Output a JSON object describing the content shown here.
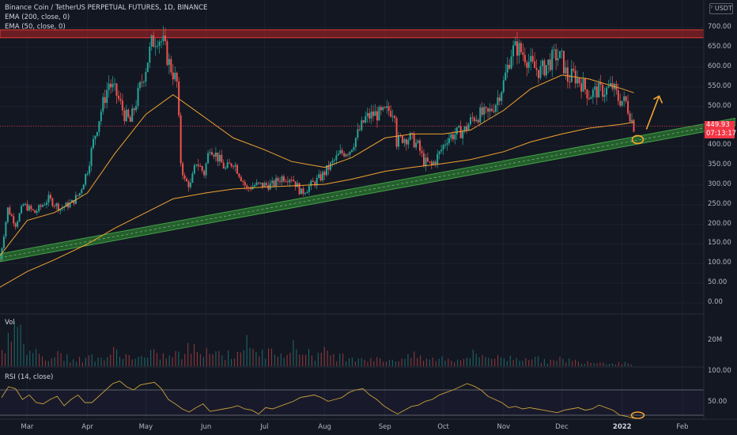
{
  "header": {
    "title": "Binance Coin / TetherUS PERPETUAL FUTURES, 1D, BINANCE",
    "indicators": [
      "EMA (200, close, 0)",
      "EMA (50, close, 0)"
    ]
  },
  "currency": "USDT",
  "last_price": {
    "value": "449.93",
    "countdown": "07:13:17"
  },
  "volume_panel": {
    "label": "Vol",
    "scale_label": "20M"
  },
  "rsi_panel": {
    "label": "RSI (14, close)",
    "scale_labels": [
      "100.00",
      "50.00"
    ]
  },
  "colors": {
    "background": "#131722",
    "up": "#26a69a",
    "down": "#ef5350",
    "ema": "#f0a330",
    "rsi": "#c8a03a",
    "resistance_zone": "#b22222",
    "support_zone": "#2e7d32",
    "annotation": "#f7a530"
  },
  "chart_data": [
    {
      "type": "candlestick",
      "title": "Binance Coin / TetherUS PERPETUAL FUTURES, 1D, BINANCE",
      "y_ticks": [
        "700.00",
        "650.00",
        "600.00",
        "550.00",
        "500.00",
        "450.00",
        "400.00",
        "350.00",
        "300.00",
        "250.00",
        "200.00",
        "150.00",
        "100.00",
        "50.00",
        "0.00"
      ],
      "ylim": [
        0,
        720
      ],
      "x_ticks": [
        "Mar",
        "Apr",
        "May",
        "Jun",
        "Jul",
        "Aug",
        "Sep",
        "Oct",
        "Nov",
        "Dec",
        "2022",
        "Feb"
      ],
      "date_range": [
        "2021-02-15",
        "2022-01-07"
      ],
      "price_path": [
        [
          "2021-02-15",
          110
        ],
        [
          "2021-02-19",
          240
        ],
        [
          "2021-02-23",
          200
        ],
        [
          "2021-02-27",
          250
        ],
        [
          "2021-03-05",
          230
        ],
        [
          "2021-03-12",
          265
        ],
        [
          "2021-03-18",
          240
        ],
        [
          "2021-03-24",
          255
        ],
        [
          "2021-03-28",
          280
        ],
        [
          "2021-04-01",
          340
        ],
        [
          "2021-04-04",
          410
        ],
        [
          "2021-04-08",
          490
        ],
        [
          "2021-04-12",
          560
        ],
        [
          "2021-04-16",
          530
        ],
        [
          "2021-04-20",
          480
        ],
        [
          "2021-04-23",
          460
        ],
        [
          "2021-04-27",
          530
        ],
        [
          "2021-05-01",
          600
        ],
        [
          "2021-05-04",
          660
        ],
        [
          "2021-05-07",
          680
        ],
        [
          "2021-05-10",
          660
        ],
        [
          "2021-05-13",
          610
        ],
        [
          "2021-05-17",
          560
        ],
        [
          "2021-05-19",
          360
        ],
        [
          "2021-05-21",
          310
        ],
        [
          "2021-05-24",
          300
        ],
        [
          "2021-05-27",
          360
        ],
        [
          "2021-05-31",
          330
        ],
        [
          "2021-06-03",
          400
        ],
        [
          "2021-06-07",
          370
        ],
        [
          "2021-06-11",
          340
        ],
        [
          "2021-06-15",
          360
        ],
        [
          "2021-06-19",
          320
        ],
        [
          "2021-06-22",
          290
        ],
        [
          "2021-06-26",
          300
        ],
        [
          "2021-06-30",
          300
        ],
        [
          "2021-07-05",
          300
        ],
        [
          "2021-07-10",
          320
        ],
        [
          "2021-07-15",
          320
        ],
        [
          "2021-07-20",
          280
        ],
        [
          "2021-07-25",
          300
        ],
        [
          "2021-07-30",
          320
        ],
        [
          "2021-08-04",
          350
        ],
        [
          "2021-08-09",
          380
        ],
        [
          "2021-08-14",
          390
        ],
        [
          "2021-08-18",
          430
        ],
        [
          "2021-08-22",
          470
        ],
        [
          "2021-08-26",
          480
        ],
        [
          "2021-08-30",
          480
        ],
        [
          "2021-09-03",
          490
        ],
        [
          "2021-09-06",
          490
        ],
        [
          "2021-09-07",
          410
        ],
        [
          "2021-09-10",
          420
        ],
        [
          "2021-09-14",
          420
        ],
        [
          "2021-09-18",
          400
        ],
        [
          "2021-09-21",
          360
        ],
        [
          "2021-09-25",
          350
        ],
        [
          "2021-09-29",
          380
        ],
        [
          "2021-10-03",
          420
        ],
        [
          "2021-10-07",
          430
        ],
        [
          "2021-10-12",
          440
        ],
        [
          "2021-10-16",
          470
        ],
        [
          "2021-10-20",
          480
        ],
        [
          "2021-10-24",
          480
        ],
        [
          "2021-10-28",
          510
        ],
        [
          "2021-11-01",
          560
        ],
        [
          "2021-11-05",
          640
        ],
        [
          "2021-11-08",
          650
        ],
        [
          "2021-11-12",
          630
        ],
        [
          "2021-11-16",
          600
        ],
        [
          "2021-11-20",
          590
        ],
        [
          "2021-11-24",
          610
        ],
        [
          "2021-11-28",
          630
        ],
        [
          "2021-12-01",
          620
        ],
        [
          "2021-12-04",
          570
        ],
        [
          "2021-12-07",
          580
        ],
        [
          "2021-12-11",
          560
        ],
        [
          "2021-12-15",
          530
        ],
        [
          "2021-12-19",
          540
        ],
        [
          "2021-12-23",
          540
        ],
        [
          "2021-12-27",
          550
        ],
        [
          "2021-12-30",
          520
        ],
        [
          "2022-01-03",
          510
        ],
        [
          "2022-01-05",
          480
        ],
        [
          "2022-01-07",
          450
        ]
      ],
      "ema_50": [
        [
          "2021-02-15",
          120
        ],
        [
          "2021-03-01",
          210
        ],
        [
          "2021-03-15",
          230
        ],
        [
          "2021-04-01",
          280
        ],
        [
          "2021-04-15",
          380
        ],
        [
          "2021-05-01",
          480
        ],
        [
          "2021-05-15",
          530
        ],
        [
          "2021-06-01",
          470
        ],
        [
          "2021-06-15",
          420
        ],
        [
          "2021-07-01",
          390
        ],
        [
          "2021-07-15",
          360
        ],
        [
          "2021-08-01",
          345
        ],
        [
          "2021-08-15",
          370
        ],
        [
          "2021-09-01",
          420
        ],
        [
          "2021-09-15",
          430
        ],
        [
          "2021-10-01",
          430
        ],
        [
          "2021-10-15",
          440
        ],
        [
          "2021-11-01",
          490
        ],
        [
          "2021-11-15",
          545
        ],
        [
          "2021-12-01",
          580
        ],
        [
          "2021-12-15",
          570
        ],
        [
          "2022-01-01",
          545
        ],
        [
          "2022-01-07",
          535
        ]
      ],
      "ema_200": [
        [
          "2021-02-15",
          40
        ],
        [
          "2021-03-01",
          80
        ],
        [
          "2021-03-15",
          110
        ],
        [
          "2021-04-01",
          150
        ],
        [
          "2021-04-15",
          190
        ],
        [
          "2021-05-01",
          230
        ],
        [
          "2021-05-15",
          265
        ],
        [
          "2021-06-01",
          280
        ],
        [
          "2021-06-15",
          290
        ],
        [
          "2021-07-01",
          295
        ],
        [
          "2021-07-15",
          298
        ],
        [
          "2021-08-01",
          302
        ],
        [
          "2021-08-15",
          315
        ],
        [
          "2021-09-01",
          335
        ],
        [
          "2021-09-15",
          345
        ],
        [
          "2021-10-01",
          355
        ],
        [
          "2021-10-15",
          365
        ],
        [
          "2021-11-01",
          385
        ],
        [
          "2021-11-15",
          410
        ],
        [
          "2021-12-01",
          430
        ],
        [
          "2021-12-15",
          445
        ],
        [
          "2022-01-01",
          455
        ],
        [
          "2022-01-07",
          460
        ]
      ],
      "resistance_zone": {
        "from": 675,
        "to": 695
      },
      "support_trendline": [
        [
          "2021-02-15",
          115
        ],
        [
          "2022-02-28",
          460
        ]
      ],
      "current_price": 449.93
    },
    {
      "type": "bar",
      "title": "Vol",
      "y_ticks": [
        "20M"
      ],
      "values_relative": [
        0.75,
        0.95,
        0.5,
        0.3,
        0.4,
        0.25,
        0.2,
        0.3,
        0.25,
        0.45,
        0.3,
        0.25,
        0.35,
        0.3,
        0.35,
        0.5,
        0.55,
        0.4,
        0.35,
        0.65,
        0.45,
        0.4,
        0.55,
        0.55,
        0.45,
        0.35,
        0.4,
        0.3,
        0.3,
        0.25,
        0.2,
        0.2,
        0.25,
        0.3,
        0.2,
        0.25,
        0.2,
        0.3,
        0.35,
        0.3,
        0.25,
        0.25,
        0.3,
        0.2,
        0.15,
        0.2,
        0.15,
        0.15,
        0.12,
        0.1,
        0.1
      ]
    },
    {
      "type": "line",
      "title": "RSI (14, close)",
      "y_ticks": [
        "100.00",
        "50.00"
      ],
      "ylim": [
        0,
        100
      ],
      "bands": [
        70,
        30
      ],
      "values": [
        58,
        75,
        72,
        55,
        62,
        50,
        48,
        55,
        60,
        45,
        55,
        62,
        50,
        50,
        60,
        70,
        80,
        84,
        75,
        70,
        78,
        80,
        82,
        72,
        55,
        48,
        40,
        35,
        42,
        48,
        36,
        38,
        40,
        42,
        45,
        40,
        38,
        32,
        42,
        40,
        44,
        48,
        52,
        58,
        60,
        62,
        58,
        52,
        55,
        58,
        66,
        70,
        72,
        62,
        55,
        45,
        38,
        32,
        38,
        44,
        46,
        52,
        55,
        62,
        66,
        70,
        75,
        80,
        76,
        70,
        60,
        55,
        50,
        42,
        44,
        40,
        42,
        40,
        38,
        36,
        34,
        38,
        40,
        42,
        38,
        40,
        46,
        42,
        38,
        30,
        28,
        20
      ]
    }
  ]
}
